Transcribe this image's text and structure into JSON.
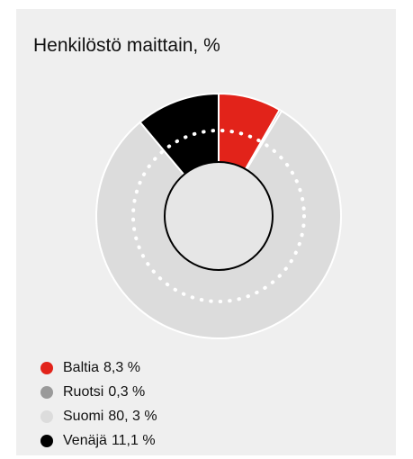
{
  "chart_data": {
    "type": "pie",
    "title": "Henkilöstö maittain, %",
    "categories": [
      "Baltia",
      "Ruotsi",
      "Suomi",
      "Venäjä"
    ],
    "values": [
      8.3,
      0.3,
      80.3,
      11.1
    ],
    "value_labels": [
      "8,3 %",
      "0,3 %",
      "80, 3 %",
      "11,1 %"
    ],
    "colors": [
      "#e2231a",
      "#9a9a9a",
      "#dcdcdc",
      "#000000"
    ]
  }
}
